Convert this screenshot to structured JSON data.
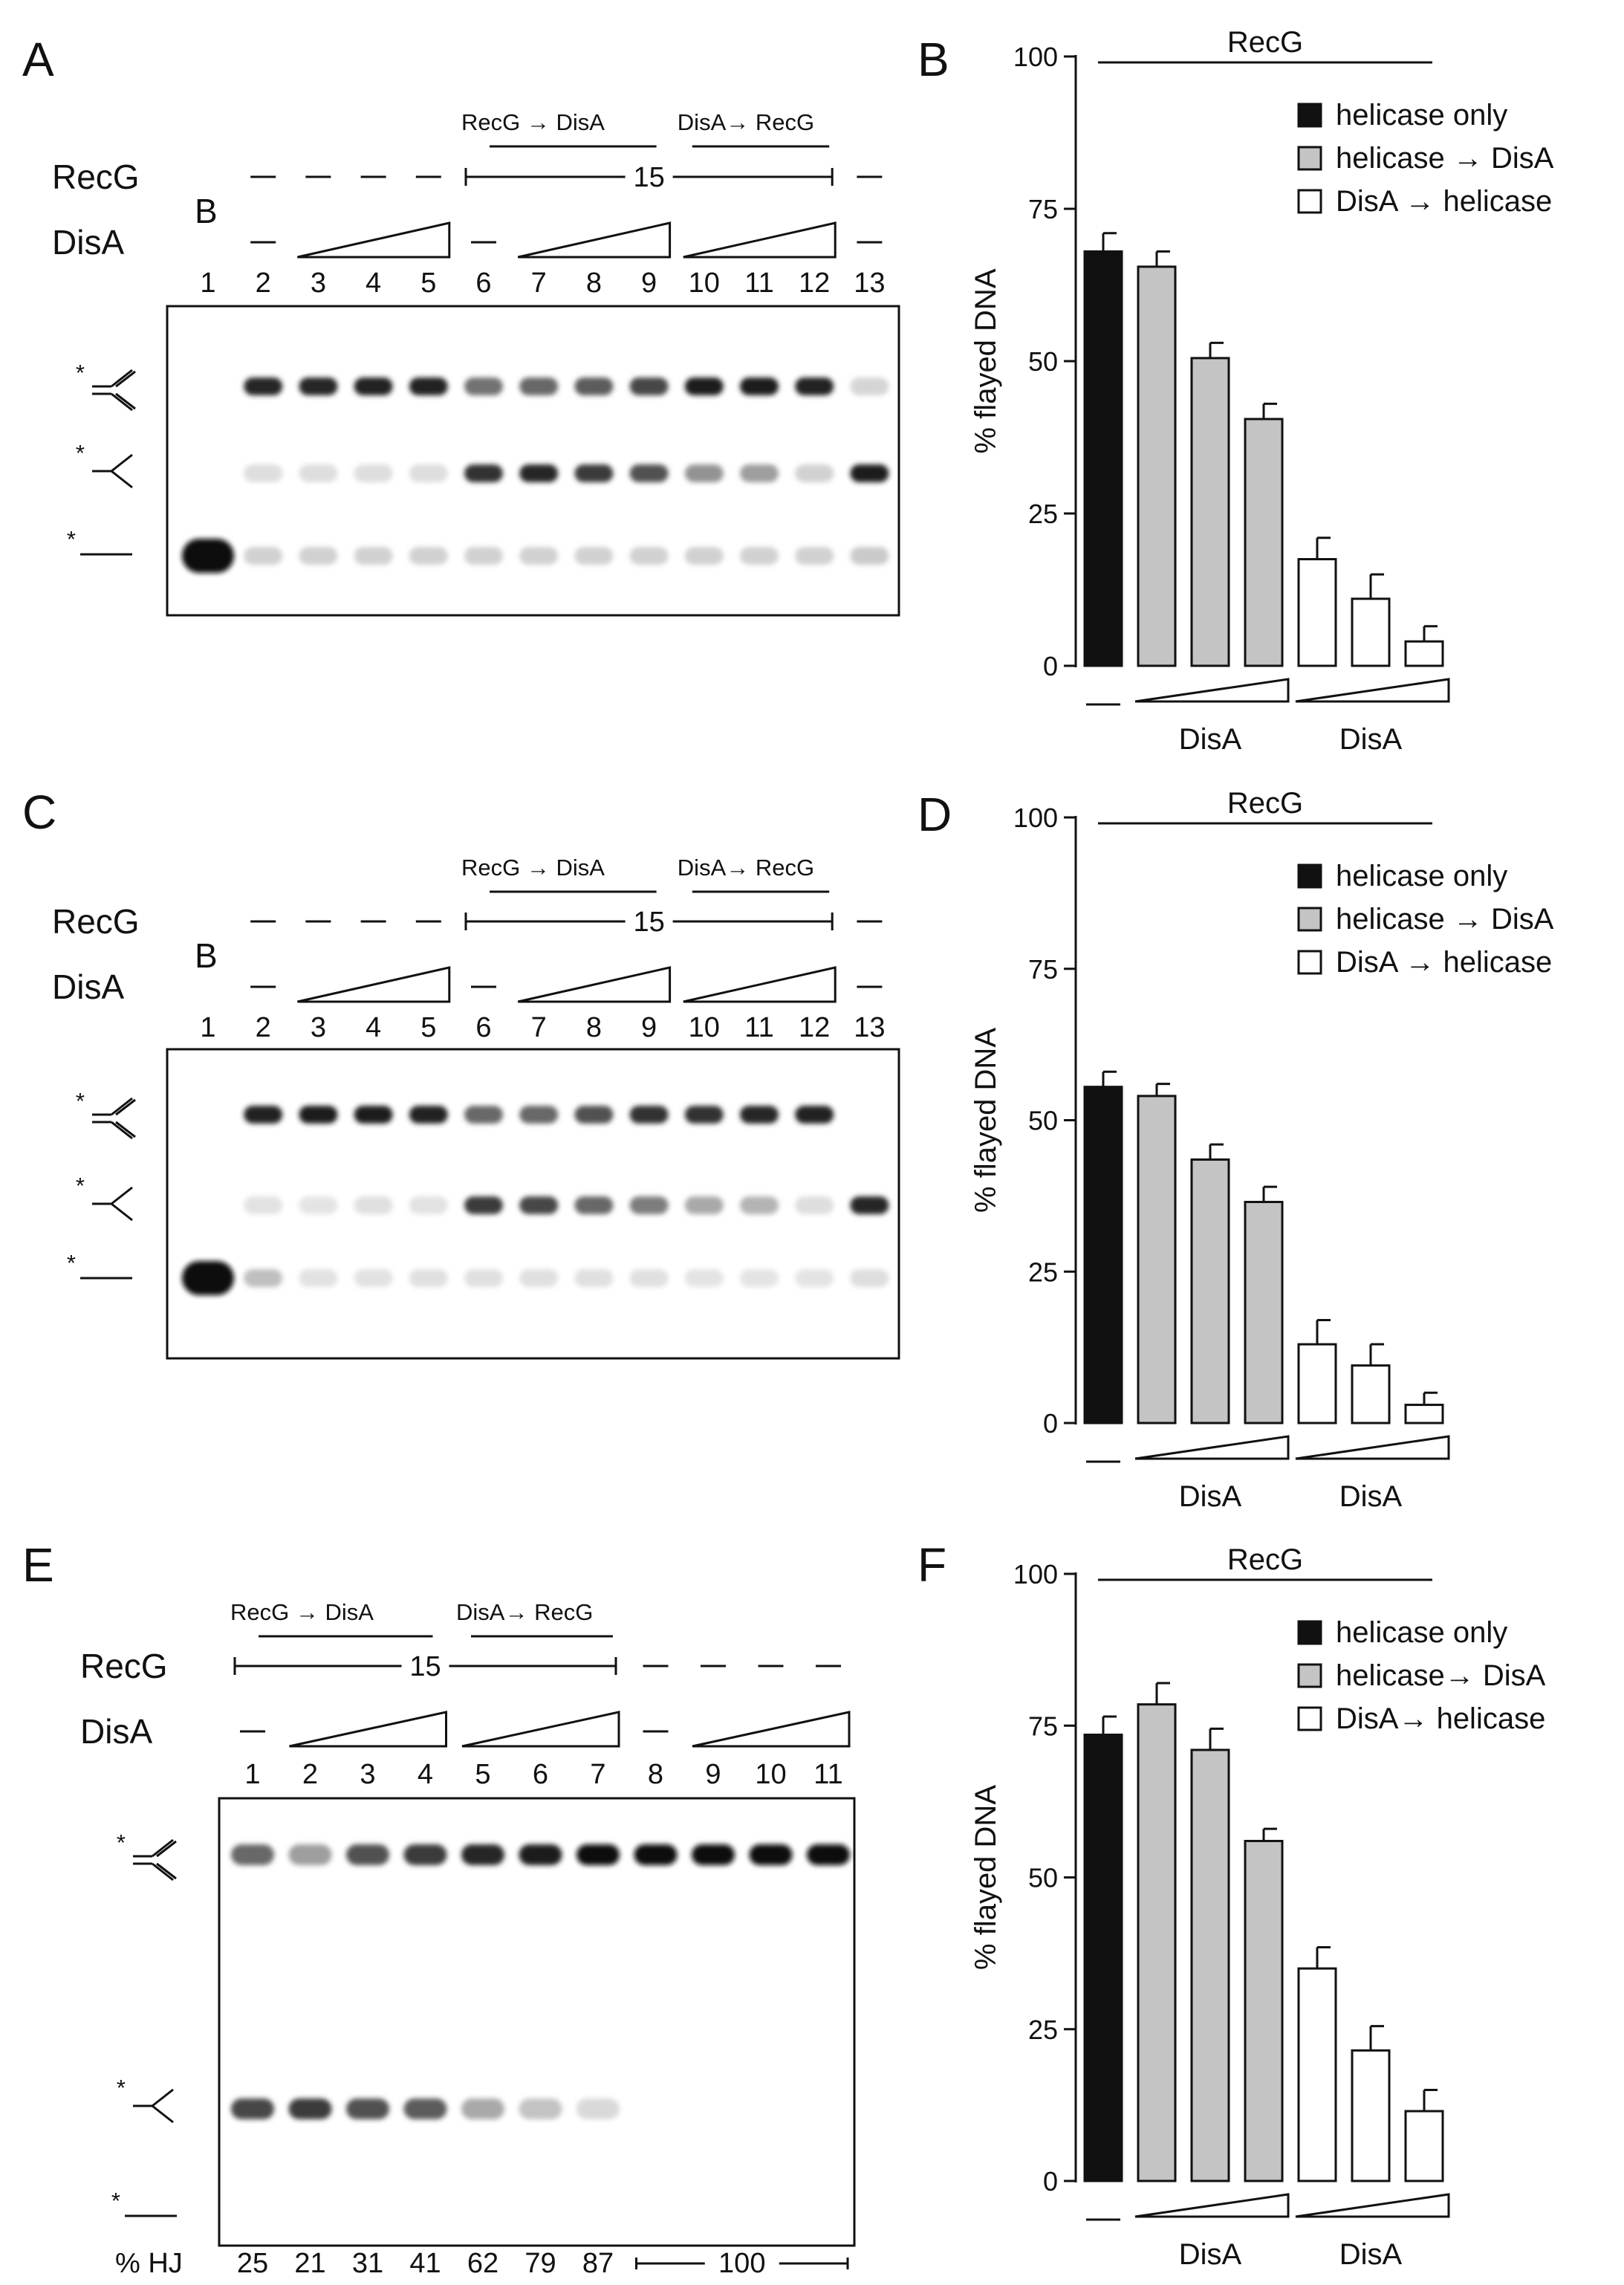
{
  "figure": {
    "background": "#ffffff",
    "ink": "#111111",
    "gray_fill": "#c4c4c4"
  },
  "gels": [
    {
      "panel": "A",
      "row_recg": "RecG",
      "row_disa": "DisA",
      "marker": "B",
      "top_left_label": "RecG → DisA",
      "top_right_label": "DisA→ RecG",
      "time_label": "15",
      "lanes": [
        "1",
        "2",
        "3",
        "4",
        "5",
        "6",
        "7",
        "8",
        "9",
        "10",
        "11",
        "12",
        "13"
      ],
      "bands": {
        "top": [
          0,
          0.9,
          0.9,
          0.92,
          0.92,
          0.55,
          0.6,
          0.65,
          0.75,
          0.95,
          0.95,
          0.92,
          0.1
        ],
        "middle": [
          0,
          0.06,
          0.06,
          0.06,
          0.06,
          0.85,
          0.9,
          0.8,
          0.7,
          0.4,
          0.35,
          0.12,
          0.95
        ],
        "bottom": [
          1,
          0.12,
          0.12,
          0.12,
          0.12,
          0.12,
          0.12,
          0.12,
          0.12,
          0.12,
          0.12,
          0.12,
          0.15
        ]
      }
    },
    {
      "panel": "C",
      "row_recg": "RecG",
      "row_disa": "DisA",
      "marker": "B",
      "top_left_label": "RecG → DisA",
      "top_right_label": "DisA→ RecG",
      "time_label": "15",
      "lanes": [
        "1",
        "2",
        "3",
        "4",
        "5",
        "6",
        "7",
        "8",
        "9",
        "10",
        "11",
        "12",
        "13"
      ],
      "bands": {
        "top": [
          0,
          0.92,
          0.95,
          0.95,
          0.92,
          0.6,
          0.6,
          0.7,
          0.85,
          0.85,
          0.9,
          0.92,
          0
        ],
        "middle": [
          0,
          0.04,
          0.03,
          0.05,
          0.04,
          0.8,
          0.75,
          0.6,
          0.5,
          0.3,
          0.25,
          0.06,
          0.9
        ],
        "bottom": [
          1,
          0.2,
          0.04,
          0.04,
          0.05,
          0.05,
          0.05,
          0.05,
          0.05,
          0.03,
          0.03,
          0.03,
          0.06
        ]
      }
    },
    {
      "panel": "E",
      "row_recg": "RecG",
      "row_disa": "DisA",
      "top_left_label": "RecG → DisA",
      "top_right_label": "DisA→ RecG",
      "time_label": "15",
      "lanes": [
        "1",
        "2",
        "3",
        "4",
        "5",
        "6",
        "7",
        "8",
        "9",
        "10",
        "11"
      ],
      "bands": {
        "top": [
          0.6,
          0.35,
          0.7,
          0.8,
          0.9,
          0.95,
          1,
          1,
          1,
          1,
          1
        ],
        "middle": [
          0.75,
          0.8,
          0.7,
          0.65,
          0.3,
          0.18,
          0.08,
          0,
          0,
          0,
          0
        ],
        "bottom": [
          0,
          0,
          0,
          0,
          0,
          0,
          0,
          0,
          0,
          0,
          0
        ]
      },
      "hj_label": "% HJ",
      "hj_values": [
        "25",
        "21",
        "31",
        "41",
        "62",
        "79",
        "87"
      ],
      "hj_range_value": "100"
    }
  ],
  "chart_data": [
    {
      "panel": "B",
      "type": "bar",
      "title": "RecG",
      "ylabel": "% flayed DNA",
      "ylim": [
        0,
        100
      ],
      "yticks": [
        "0",
        "25",
        "50",
        "75",
        "100"
      ],
      "legend": [
        "helicase only",
        "helicase → DisA",
        "DisA → helicase"
      ],
      "group_labels": [
        "—",
        "DisA",
        "DisA"
      ],
      "bars": [
        {
          "group": "helicase only",
          "value": 68,
          "error": 3
        },
        {
          "group": "helicase → DisA",
          "value": 65.5,
          "error": 2.5
        },
        {
          "group": "helicase → DisA",
          "value": 50.5,
          "error": 2.5
        },
        {
          "group": "helicase → DisA",
          "value": 40.5,
          "error": 2.5
        },
        {
          "group": "DisA → helicase",
          "value": 17.5,
          "error": 3.5
        },
        {
          "group": "DisA → helicase",
          "value": 11,
          "error": 4
        },
        {
          "group": "DisA → helicase",
          "value": 4,
          "error": 2.5
        }
      ]
    },
    {
      "panel": "D",
      "type": "bar",
      "title": "RecG",
      "ylabel": "% flayed DNA",
      "ylim": [
        0,
        100
      ],
      "yticks": [
        "0",
        "25",
        "50",
        "75",
        "100"
      ],
      "legend": [
        "helicase only",
        "helicase → DisA",
        "DisA → helicase"
      ],
      "group_labels": [
        "—",
        "DisA",
        "DisA"
      ],
      "bars": [
        {
          "group": "helicase only",
          "value": 55.5,
          "error": 2.5
        },
        {
          "group": "helicase → DisA",
          "value": 54,
          "error": 2
        },
        {
          "group": "helicase → DisA",
          "value": 43.5,
          "error": 2.5
        },
        {
          "group": "helicase → DisA",
          "value": 36.5,
          "error": 2.5
        },
        {
          "group": "DisA → helicase",
          "value": 13,
          "error": 4
        },
        {
          "group": "DisA → helicase",
          "value": 9.5,
          "error": 3.5
        },
        {
          "group": "DisA → helicase",
          "value": 3,
          "error": 2
        }
      ]
    },
    {
      "panel": "F",
      "type": "bar",
      "title": "RecG",
      "ylabel": "% flayed DNA",
      "ylim": [
        0,
        100
      ],
      "yticks": [
        "0",
        "25",
        "50",
        "75",
        "100"
      ],
      "legend": [
        "helicase only",
        "helicase→ DisA",
        "DisA→ helicase"
      ],
      "group_labels": [
        "—",
        "DisA",
        "DisA"
      ],
      "bars": [
        {
          "group": "helicase only",
          "value": 73.5,
          "error": 3
        },
        {
          "group": "helicase → DisA",
          "value": 78.5,
          "error": 3.5
        },
        {
          "group": "helicase → DisA",
          "value": 71,
          "error": 3.5
        },
        {
          "group": "helicase → DisA",
          "value": 56,
          "error": 2
        },
        {
          "group": "DisA → helicase",
          "value": 35,
          "error": 3.5
        },
        {
          "group": "DisA → helicase",
          "value": 21.5,
          "error": 4
        },
        {
          "group": "DisA → helicase",
          "value": 11.5,
          "error": 3.5
        }
      ]
    }
  ]
}
